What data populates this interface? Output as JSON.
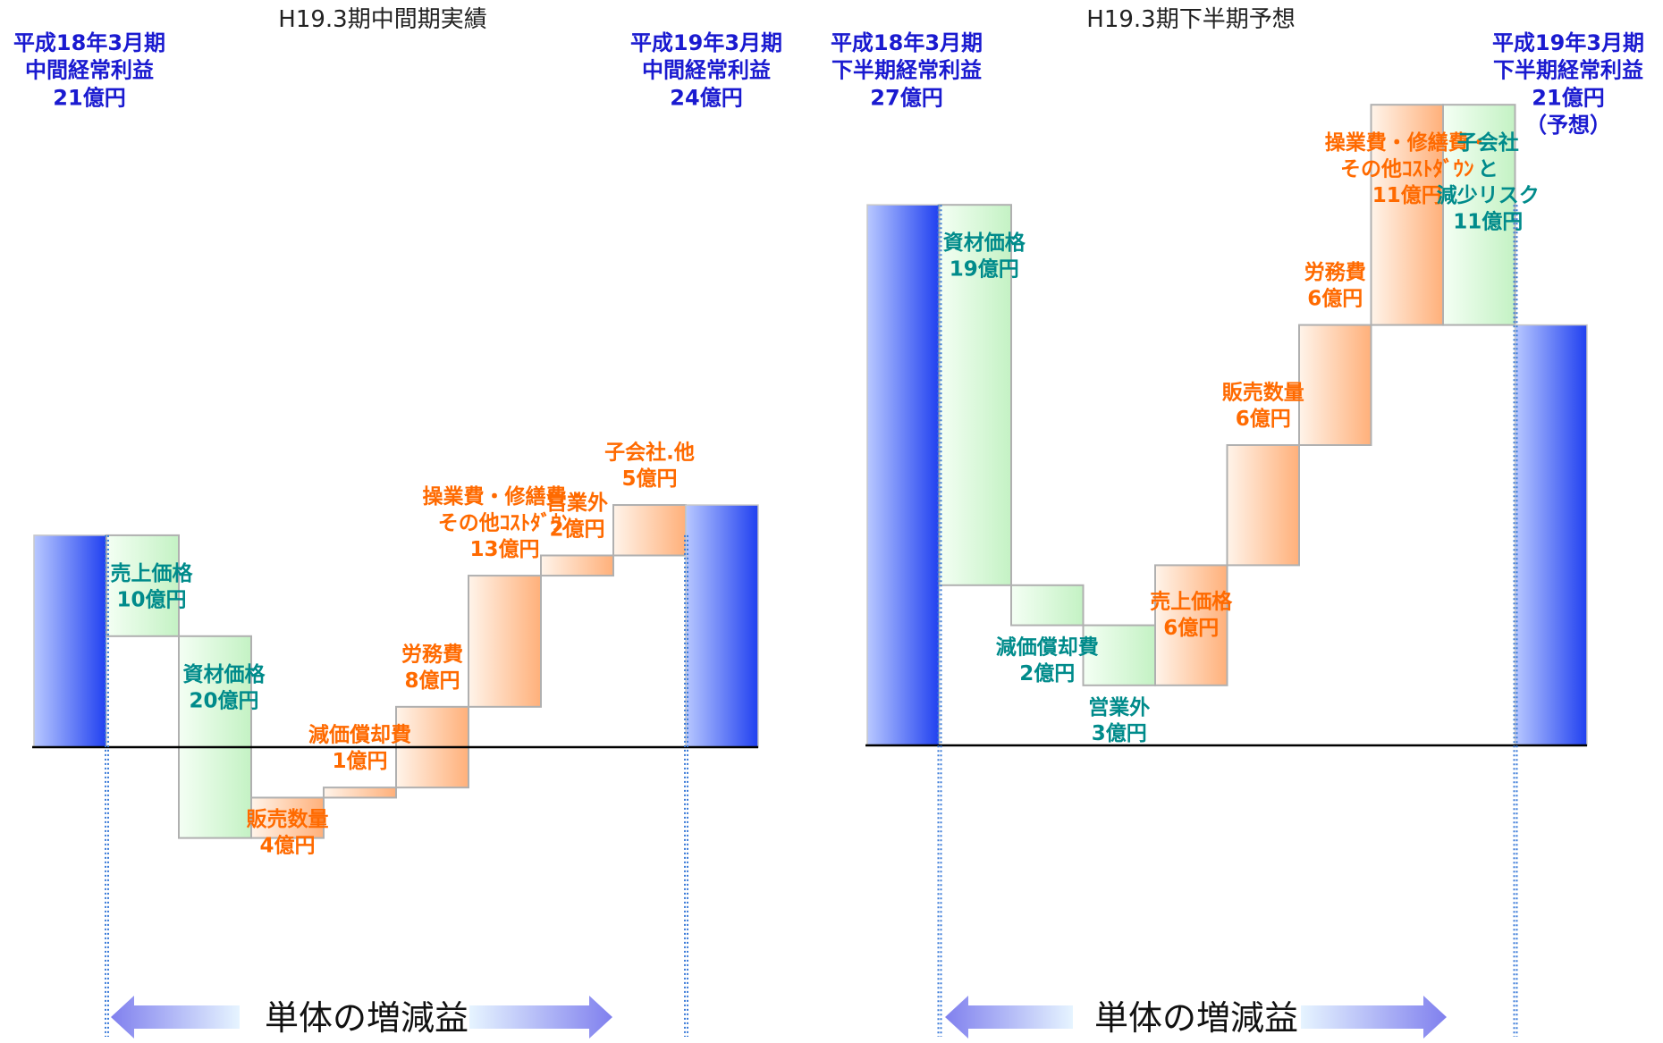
{
  "colors": {
    "positive": "#ff6a00",
    "negative": "#008b8b",
    "base": "#1a1ad0",
    "axis": "#000000",
    "bar_border": "#b0b0b0",
    "dotted": "#3b7bd8",
    "arrow": "#8c8cf0",
    "title": "#222222"
  },
  "chart_data": [
    {
      "type": "waterfall",
      "title": "H19.3期中間期実績",
      "units": "億円",
      "start": {
        "label": [
          "平成18年3月期",
          "中間経常利益",
          "21億円"
        ],
        "value": 21
      },
      "end": {
        "label": [
          "平成19年3月期",
          "中間経常利益",
          "24億円"
        ],
        "value": 24
      },
      "steps": [
        {
          "label": [
            "売上価格",
            "10億円"
          ],
          "delta": -10
        },
        {
          "label": [
            "資材価格",
            "20億円"
          ],
          "delta": -20
        },
        {
          "label": [
            "販売数量",
            "4億円"
          ],
          "delta": 4
        },
        {
          "label": [
            "減価償却費",
            "1億円"
          ],
          "delta": 1
        },
        {
          "label": [
            "労務費",
            "8億円"
          ],
          "delta": 8
        },
        {
          "label": [
            "操業費・修繕費・",
            "その他ｺｽﾄﾀﾞｳﾝ",
            "13億円"
          ],
          "delta": 13
        },
        {
          "label": [
            "営業外",
            "2億円"
          ],
          "delta": 2
        },
        {
          "label": [
            "子会社.他",
            "5億円"
          ],
          "delta": 5
        }
      ],
      "footer": "単体の増減益"
    },
    {
      "type": "waterfall",
      "title": "H19.3期下半期予想",
      "units": "億円",
      "start": {
        "label": [
          "平成18年3月期",
          "下半期経常利益",
          "27億円"
        ],
        "value": 27
      },
      "end": {
        "label": [
          "平成19年3月期",
          "下半期経常利益",
          "21億円",
          "（予想）"
        ],
        "value": 21
      },
      "steps": [
        {
          "label": [
            "資材価格",
            "19億円"
          ],
          "delta": -19
        },
        {
          "label": [
            "減価償却費",
            "2億円"
          ],
          "delta": -2
        },
        {
          "label": [
            "営業外",
            "3億円"
          ],
          "delta": -3
        },
        {
          "label": [
            "売上価格",
            "6億円"
          ],
          "delta": 6
        },
        {
          "label": [
            "販売数量",
            "6億円"
          ],
          "delta": 6
        },
        {
          "label": [
            "労務費",
            "6億円"
          ],
          "delta": 6
        },
        {
          "label": [
            "操業費・修繕費・",
            "その他ｺｽﾄﾀﾞｳﾝ",
            "11億円"
          ],
          "delta": 11
        },
        {
          "label": [
            "子会社",
            "と",
            "減少リスク",
            "11億円"
          ],
          "delta": -11
        }
      ],
      "footer": "単体の増減益"
    }
  ]
}
